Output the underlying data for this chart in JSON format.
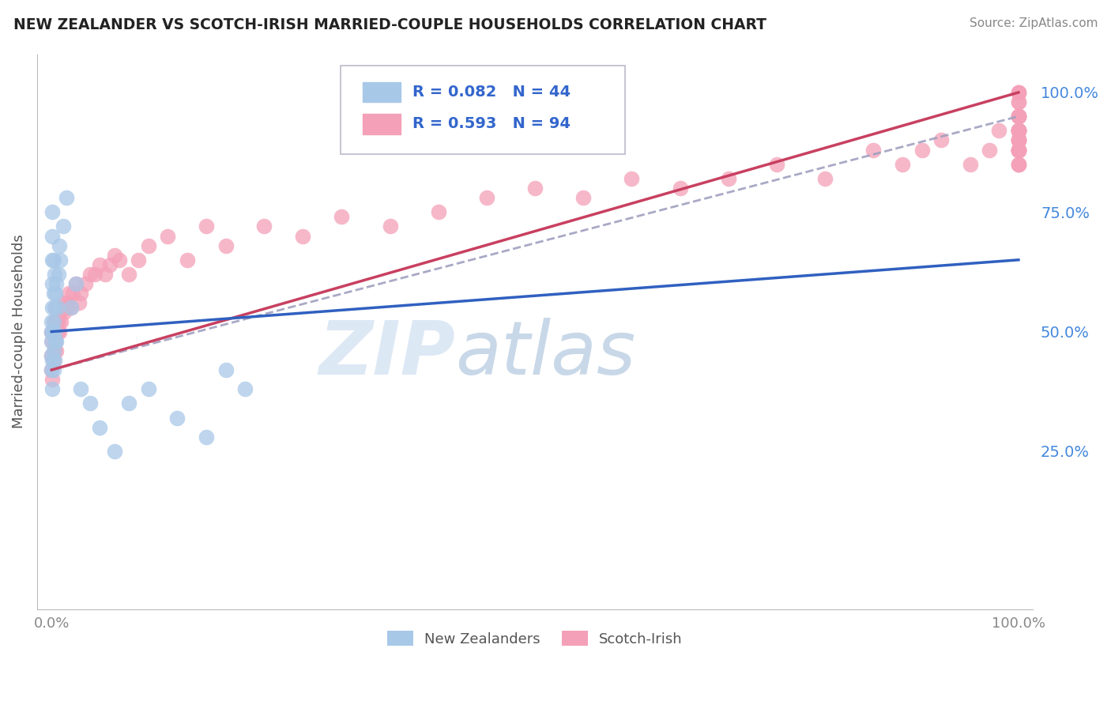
{
  "title": "NEW ZEALANDER VS SCOTCH-IRISH MARRIED-COUPLE HOUSEHOLDS CORRELATION CHART",
  "source": "Source: ZipAtlas.com",
  "ylabel": "Married-couple Households",
  "legend_blue_label": "New Zealanders",
  "legend_pink_label": "Scotch-Irish",
  "legend_blue_r": "R = 0.082",
  "legend_blue_n": "N = 44",
  "legend_pink_r": "R = 0.593",
  "legend_pink_n": "N = 94",
  "blue_color": "#a8c8e8",
  "pink_color": "#f4a0b8",
  "blue_line_color": "#3060c0",
  "pink_line_color": "#c84060",
  "dashed_line_color": "#a0a0c0",
  "legend_text_color": "#3366cc",
  "ytick_color": "#4488dd",
  "watermark_zip": "ZIP",
  "watermark_atlas": "atlas",
  "watermark_color": "#dde8f5",
  "blue_x": [
    0.0,
    0.0,
    0.0,
    0.0,
    0.0,
    0.001,
    0.001,
    0.001,
    0.001,
    0.001,
    0.001,
    0.001,
    0.001,
    0.002,
    0.002,
    0.002,
    0.002,
    0.002,
    0.003,
    0.003,
    0.003,
    0.003,
    0.004,
    0.004,
    0.005,
    0.005,
    0.006,
    0.007,
    0.008,
    0.009,
    0.012,
    0.015,
    0.02,
    0.025,
    0.03,
    0.04,
    0.05,
    0.065,
    0.08,
    0.1,
    0.13,
    0.16,
    0.18,
    0.2
  ],
  "blue_y": [
    0.42,
    0.45,
    0.48,
    0.5,
    0.52,
    0.38,
    0.44,
    0.5,
    0.55,
    0.6,
    0.65,
    0.7,
    0.75,
    0.42,
    0.46,
    0.52,
    0.58,
    0.65,
    0.44,
    0.5,
    0.55,
    0.62,
    0.48,
    0.58,
    0.48,
    0.6,
    0.55,
    0.62,
    0.68,
    0.65,
    0.72,
    0.78,
    0.55,
    0.6,
    0.38,
    0.35,
    0.3,
    0.25,
    0.35,
    0.38,
    0.32,
    0.28,
    0.42,
    0.38
  ],
  "pink_x": [
    0.0,
    0.0,
    0.0,
    0.001,
    0.001,
    0.002,
    0.002,
    0.003,
    0.003,
    0.004,
    0.004,
    0.005,
    0.005,
    0.006,
    0.007,
    0.008,
    0.009,
    0.01,
    0.012,
    0.013,
    0.015,
    0.016,
    0.018,
    0.02,
    0.022,
    0.025,
    0.028,
    0.03,
    0.035,
    0.04,
    0.045,
    0.05,
    0.055,
    0.06,
    0.065,
    0.07,
    0.08,
    0.09,
    0.1,
    0.12,
    0.14,
    0.16,
    0.18,
    0.22,
    0.26,
    0.3,
    0.35,
    0.4,
    0.45,
    0.5,
    0.55,
    0.6,
    0.65,
    0.7,
    0.75,
    0.8,
    0.85,
    0.88,
    0.9,
    0.92,
    0.95,
    0.97,
    0.98,
    1.0,
    1.0,
    1.0,
    1.0,
    1.0,
    1.0,
    1.0,
    1.0,
    1.0,
    1.0,
    1.0,
    1.0,
    1.0,
    1.0,
    1.0,
    1.0,
    1.0,
    1.0,
    1.0,
    1.0,
    1.0,
    1.0,
    1.0,
    1.0,
    1.0,
    1.0,
    1.0,
    1.0,
    1.0,
    1.0,
    1.0
  ],
  "pink_y": [
    0.42,
    0.45,
    0.5,
    0.4,
    0.48,
    0.44,
    0.52,
    0.46,
    0.5,
    0.48,
    0.55,
    0.46,
    0.52,
    0.5,
    0.52,
    0.5,
    0.54,
    0.52,
    0.56,
    0.54,
    0.55,
    0.56,
    0.58,
    0.55,
    0.58,
    0.6,
    0.56,
    0.58,
    0.6,
    0.62,
    0.62,
    0.64,
    0.62,
    0.64,
    0.66,
    0.65,
    0.62,
    0.65,
    0.68,
    0.7,
    0.65,
    0.72,
    0.68,
    0.72,
    0.7,
    0.74,
    0.72,
    0.75,
    0.78,
    0.8,
    0.78,
    0.82,
    0.8,
    0.82,
    0.85,
    0.82,
    0.88,
    0.85,
    0.88,
    0.9,
    0.85,
    0.88,
    0.92,
    0.85,
    0.88,
    0.9,
    0.92,
    0.85,
    0.88,
    0.92,
    0.9,
    0.88,
    0.92,
    0.95,
    0.9,
    0.92,
    0.95,
    0.88,
    0.9,
    0.92,
    0.95,
    0.98,
    0.88,
    0.9,
    0.92,
    0.85,
    0.88,
    0.92,
    0.95,
    1.0,
    0.95,
    0.98,
    1.0,
    1.0
  ],
  "blue_line": [
    0.0,
    1.0,
    0.5,
    0.65
  ],
  "pink_line": [
    0.0,
    1.0,
    0.42,
    1.0
  ],
  "dashed_line": [
    0.0,
    1.0,
    0.42,
    0.95
  ]
}
